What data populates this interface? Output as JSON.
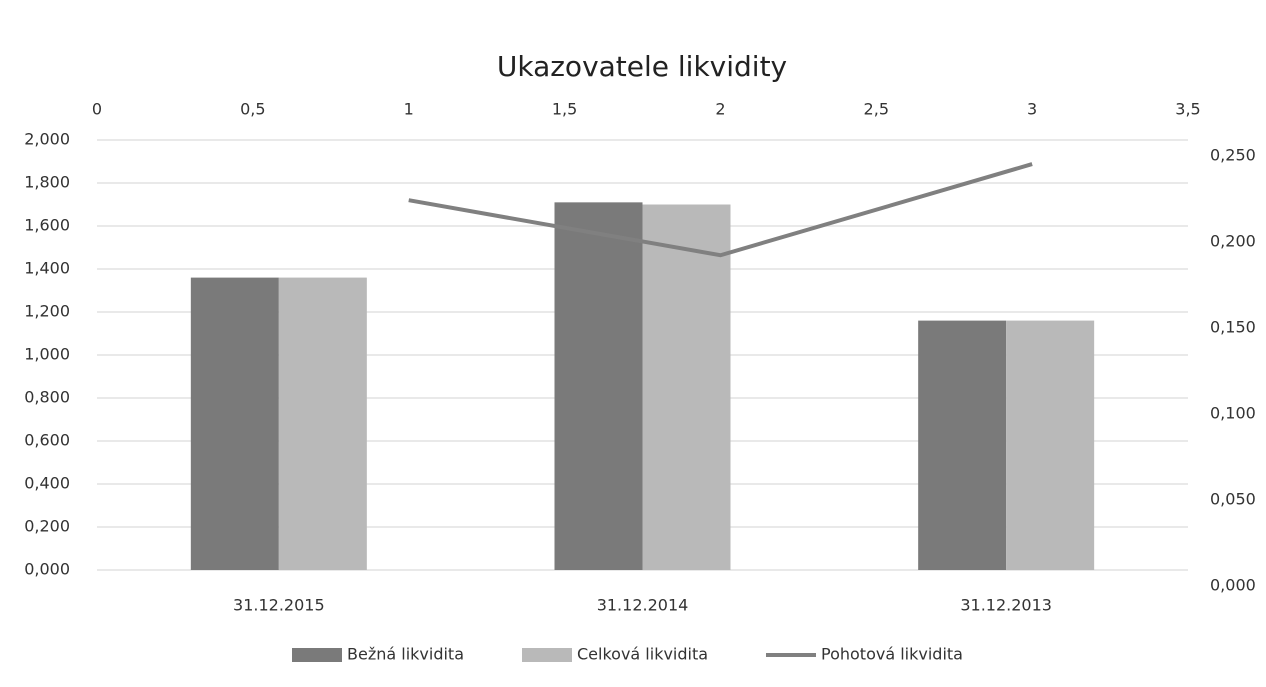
{
  "chart_data": {
    "type": "bar",
    "title": "Ukazovatele likvidity",
    "categories": [
      "31.12.2015",
      "31.12.2014",
      "31.12.2013"
    ],
    "series": [
      {
        "name": "Bežná likvidita",
        "color": "#7a7a7a",
        "values": [
          1.36,
          1.71,
          1.16
        ]
      },
      {
        "name": "Celková likvidita",
        "color": "#b9b9b9",
        "values": [
          1.36,
          1.7,
          1.16
        ]
      },
      {
        "name": "Pohotová likvidita",
        "type": "line",
        "color": "#808080",
        "axis": "y2",
        "x": [
          1,
          2,
          3
        ],
        "values": [
          0.215,
          0.183,
          0.236
        ]
      }
    ],
    "ylim": [
      0,
      2
    ],
    "yticks": [
      {
        "value": 0,
        "label": "0,000"
      },
      {
        "value": 0.2,
        "label": "0,200"
      },
      {
        "value": 0.4,
        "label": "0,400"
      },
      {
        "value": 0.6,
        "label": "0,600"
      },
      {
        "value": 0.8,
        "label": "0,800"
      },
      {
        "value": 1,
        "label": "1,000"
      },
      {
        "value": 1.2,
        "label": "1,200"
      },
      {
        "value": 1.4,
        "label": "1,400"
      },
      {
        "value": 1.6,
        "label": "1,600"
      },
      {
        "value": 1.8,
        "label": "1,800"
      },
      {
        "value": 2,
        "label": "2,000"
      }
    ],
    "y2lim": [
      0,
      0.25
    ],
    "y2ticks": [
      {
        "value": 0,
        "label": "0,000"
      },
      {
        "value": 0.05,
        "label": "0,050"
      },
      {
        "value": 0.1,
        "label": "0,100"
      },
      {
        "value": 0.15,
        "label": "0,150"
      },
      {
        "value": 0.2,
        "label": "0,200"
      },
      {
        "value": 0.25,
        "label": "0,250"
      }
    ],
    "x2lim": [
      0,
      3.5
    ],
    "x2ticks": [
      0,
      {
        "value": 0.5,
        "label": "0,5"
      },
      1,
      {
        "value": 1.5,
        "label": "1,5"
      },
      2,
      {
        "value": 2.5,
        "label": "2,5"
      },
      3,
      {
        "value": 3.5,
        "label": "3,5"
      }
    ],
    "grid": true,
    "legend": "bottom"
  }
}
